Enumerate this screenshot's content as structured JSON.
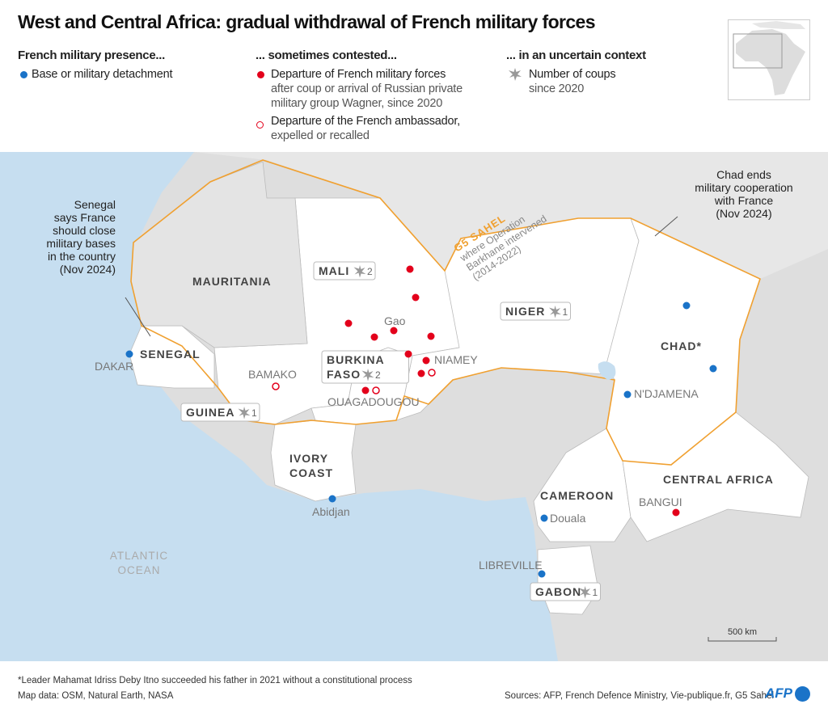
{
  "title": "West and Central Africa: gradual withdrawal of French military forces",
  "legend": {
    "col1": {
      "heading": "French military presence...",
      "items": [
        {
          "label": "Base or military detachment",
          "symbol": "blue-dot"
        }
      ]
    },
    "col2": {
      "heading": "... sometimes contested...",
      "items": [
        {
          "label": "Departure of French military forces",
          "sub": "after coup or arrival of Russian private military group Wagner, since 2020",
          "symbol": "red-dot"
        },
        {
          "label": "Departure of the French ambassador,",
          "sub": "expelled or recalled",
          "symbol": "red-open-circle"
        }
      ]
    },
    "col3": {
      "heading": "... in an uncertain context",
      "items": [
        {
          "label": "Number of coups",
          "sub": "since 2020",
          "symbol": "coup-burst-icon"
        }
      ]
    }
  },
  "colors": {
    "base": "#1a73c8",
    "departure": "#e3001b",
    "g5": "#f0a030",
    "sea": "#c6def0",
    "land": "#dedede",
    "focus": "#ffffff"
  },
  "countries": [
    {
      "name": "MAURITANIA"
    },
    {
      "name": "MALI",
      "coups": "2"
    },
    {
      "name": "NIGER",
      "coups": "1"
    },
    {
      "name": "BURKINA",
      "name2": "FASO",
      "coups": "2"
    },
    {
      "name": "SENEGAL"
    },
    {
      "name": "GUINEA",
      "coups": "1"
    },
    {
      "name": "IVORY",
      "name2": "COAST"
    },
    {
      "name": "CHAD*"
    },
    {
      "name": "CAMEROON"
    },
    {
      "name": "CENTRAL AFRICA"
    },
    {
      "name": "GABON",
      "coups": "1"
    }
  ],
  "cities": [
    "DAKAR",
    "BAMAKO",
    "OUAGADOUGOU",
    "NIAMEY",
    "Gao",
    "N'DJAMENA",
    "Abidjan",
    "Douala",
    "BANGUI",
    "LIBREVILLE"
  ],
  "ocean": {
    "line1": "ATLANTIC",
    "line2": "OCEAN"
  },
  "g5": {
    "title": "G5 SAHEL",
    "line1": "where Operation",
    "line2": "Barkhane intervened",
    "line3": "(2014-2022)"
  },
  "annotations": {
    "senegal": [
      "Senegal",
      "says France",
      "should close",
      "military bases",
      "in the country",
      "(Nov 2024)"
    ],
    "chad": [
      "Chad ends",
      "military cooperation",
      "with France",
      "(Nov 2024)"
    ]
  },
  "scale": "500 km",
  "footer": {
    "note": "*Leader Mahamat Idriss Deby Itno succeeded his father in 2021 without a constitutional process",
    "mapdata": "Map data: OSM, Natural Earth, NASA",
    "sources": "Sources: AFP, French Defence Ministry, Vie-publique.fr, G5 Sahel",
    "logo": "AFP"
  }
}
